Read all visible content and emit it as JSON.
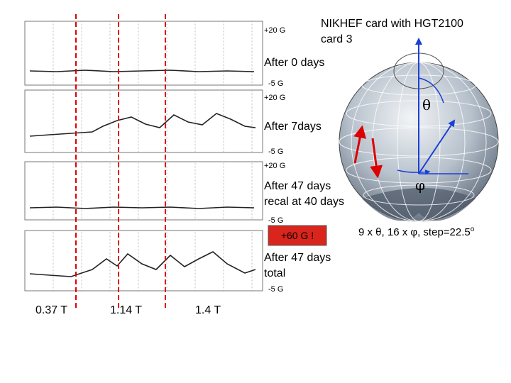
{
  "header": {
    "title": [
      "NIKHEF card with HGT2100",
      "card 3"
    ]
  },
  "panels": [
    {
      "top_label": "+20 G",
      "bottom_label": "-5 G",
      "caption": [
        "After 0 days"
      ]
    },
    {
      "top_label": "+20 G",
      "bottom_label": "-5 G",
      "caption": [
        "After 7days"
      ]
    },
    {
      "top_label": "+20 G",
      "bottom_label": "-5 G",
      "caption": [
        "After 47 days",
        "recal at 40 days"
      ]
    },
    {
      "top_label": "+60 G !",
      "bottom_label": "-5 G",
      "caption": [
        "After 47 days",
        "total"
      ]
    }
  ],
  "field_labels": [
    "0.37 T",
    "1.14 T",
    "1.4 T"
  ],
  "sphere": {
    "theta": "θ",
    "phi": "φ",
    "caption": "9 x θ, 16 x φ, step=22.5",
    "degree": "o"
  }
}
